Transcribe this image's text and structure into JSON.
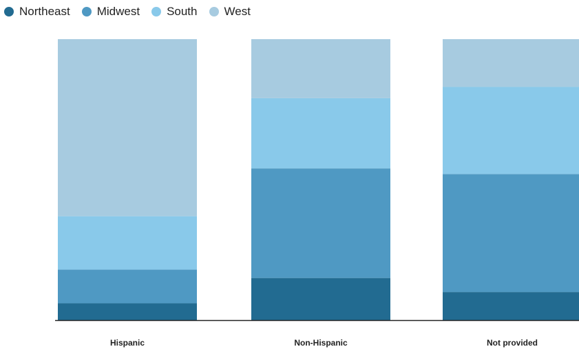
{
  "chart_data": {
    "type": "bar",
    "stacked": true,
    "normalized": true,
    "categories": [
      "Hispanic",
      "Non-Hispanic",
      "Not provided"
    ],
    "series": [
      {
        "name": "Northeast",
        "color": "#226b91",
        "values": [
          6,
          15,
          10
        ]
      },
      {
        "name": "Midwest",
        "color": "#4f99c3",
        "values": [
          12,
          39,
          42
        ]
      },
      {
        "name": "South",
        "color": "#89c9ea",
        "values": [
          19,
          25,
          31
        ]
      },
      {
        "name": "West",
        "color": "#a7cbe0",
        "values": [
          63,
          21,
          17
        ]
      }
    ],
    "ylim": [
      0,
      100
    ],
    "legend_position": "top-left",
    "grid": false
  }
}
